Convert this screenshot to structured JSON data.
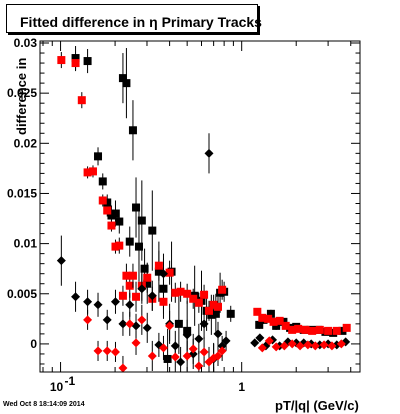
{
  "title": "Fitted difference in η  Primary Tracks",
  "timestamp": "Wed Oct  8 18:14:09 2014",
  "chart_data": {
    "type": "scatter",
    "title": "Fitted difference in η  Primary Tracks",
    "xlabel": "pT/|q| (GeV/c)",
    "ylabel": "difference in",
    "x_scale": "log",
    "xlim": [
      0.077,
      4.5
    ],
    "ylim": [
      -0.0028,
      0.0302
    ],
    "x_ticks": [
      {
        "value": 0.1,
        "label": "10",
        "exp": "-1"
      },
      {
        "value": 1,
        "label": "1",
        "exp": ""
      }
    ],
    "y_ticks": [
      {
        "value": 0,
        "label": "0"
      },
      {
        "value": 0.005,
        "label": "0.005"
      },
      {
        "value": 0.01,
        "label": "0.01"
      },
      {
        "value": 0.015,
        "label": "0.015"
      },
      {
        "value": 0.02,
        "label": "0.02"
      },
      {
        "value": 0.025,
        "label": "0.025"
      },
      {
        "value": 0.03,
        "label": "0.03"
      }
    ],
    "grid": false,
    "series": [
      {
        "color": "#000000",
        "marker": "square",
        "points": [
          [
            0.121,
            0.0285,
            0.0012
          ],
          [
            0.141,
            0.0282,
            0.0012
          ],
          [
            0.161,
            0.0187,
            0.0009
          ],
          [
            0.171,
            0.0162,
            0.0008
          ],
          [
            0.181,
            0.0141,
            0.0008
          ],
          [
            0.191,
            0.0128,
            0.001
          ],
          [
            0.201,
            0.013,
            0.0013
          ],
          [
            0.211,
            0.0122,
            0.0012
          ],
          [
            0.221,
            0.0265,
            0.0025
          ],
          [
            0.231,
            0.026,
            0.0035
          ],
          [
            0.241,
            0.0102,
            0.0015
          ],
          [
            0.251,
            0.0213,
            0.003
          ],
          [
            0.261,
            0.0136,
            0.003
          ],
          [
            0.271,
            0.0097,
            0.0035
          ],
          [
            0.281,
            0.0123,
            0.004
          ],
          [
            0.291,
            0.0075,
            0.002
          ],
          [
            0.301,
            0.006,
            0.002
          ],
          [
            0.321,
            0.0113,
            0.004
          ],
          [
            0.349,
            0.0072,
            0.003
          ],
          [
            0.37,
            0.0055,
            0.003
          ],
          [
            0.39,
            -0.0015,
            0.003
          ],
          [
            0.41,
            0.0072,
            0.003
          ],
          [
            0.45,
            0.002,
            0.003
          ],
          [
            0.5,
            0.0013,
            0.003
          ],
          [
            0.55,
            0.0048,
            0.003
          ],
          [
            0.6,
            0.0043,
            0.003
          ],
          [
            0.64,
            0.0033,
            0.002
          ],
          [
            0.68,
            0.0029,
            0.002
          ],
          [
            0.72,
            0.003,
            0.002
          ],
          [
            0.76,
            0.0051,
            0.002
          ],
          [
            0.8,
            0.0052,
            0.001
          ],
          [
            0.87,
            0.003,
            0.0008
          ],
          [
            1.25,
            0.0019,
            0.0004
          ],
          [
            1.32,
            0.0024,
            0.0004
          ],
          [
            1.45,
            0.003,
            0.0004
          ],
          [
            1.55,
            0.0018,
            0.0004
          ],
          [
            1.7,
            0.0022,
            0.0003
          ],
          [
            1.85,
            0.0016,
            0.0003
          ],
          [
            2.0,
            0.0017,
            0.0003
          ],
          [
            2.2,
            0.0014,
            0.0003
          ],
          [
            2.4,
            0.0014,
            0.0003
          ],
          [
            2.65,
            0.0014,
            0.0003
          ],
          [
            2.9,
            0.0012,
            0.0003
          ],
          [
            3.2,
            0.0011,
            0.0003
          ],
          [
            3.6,
            0.0013,
            0.0003
          ]
        ]
      },
      {
        "color": "#ff0000",
        "marker": "square",
        "points": [
          [
            0.101,
            0.0283,
            0.0008
          ],
          [
            0.121,
            0.028,
            0.0008
          ],
          [
            0.131,
            0.0243,
            0.0008
          ],
          [
            0.141,
            0.0171,
            0.0006
          ],
          [
            0.151,
            0.0172,
            0.0006
          ],
          [
            0.171,
            0.0143,
            0.0006
          ],
          [
            0.181,
            0.0133,
            0.0006
          ],
          [
            0.191,
            0.0118,
            0.0006
          ],
          [
            0.201,
            0.0097,
            0.0007
          ],
          [
            0.211,
            0.0098,
            0.0008
          ],
          [
            0.221,
            0.0048,
            0.001
          ],
          [
            0.231,
            0.0068,
            0.0012
          ],
          [
            0.241,
            0.0058,
            0.0012
          ],
          [
            0.251,
            0.0068,
            0.0012
          ],
          [
            0.261,
            0.0047,
            0.0015
          ],
          [
            0.281,
            0.0058,
            0.0015
          ],
          [
            0.301,
            0.0066,
            0.0015
          ],
          [
            0.321,
            0.0045,
            0.0012
          ],
          [
            0.349,
            0.0078,
            0.0015
          ],
          [
            0.37,
            0.0042,
            0.0012
          ],
          [
            0.4,
            0.0071,
            0.0012
          ],
          [
            0.43,
            0.0051,
            0.001
          ],
          [
            0.46,
            0.0052,
            0.001
          ],
          [
            0.5,
            0.005,
            0.001
          ],
          [
            0.54,
            0.0045,
            0.001
          ],
          [
            0.58,
            0.0041,
            0.001
          ],
          [
            0.62,
            0.0049,
            0.001
          ],
          [
            0.66,
            0.0033,
            0.001
          ],
          [
            0.7,
            0.0039,
            0.001
          ],
          [
            0.74,
            0.0037,
            0.001
          ],
          [
            0.78,
            0.0054,
            0.001
          ],
          [
            1.22,
            0.0032,
            0.0003
          ],
          [
            1.3,
            0.0026,
            0.0003
          ],
          [
            1.4,
            0.0025,
            0.0003
          ],
          [
            1.5,
            0.0022,
            0.0003
          ],
          [
            1.62,
            0.0023,
            0.0003
          ],
          [
            1.75,
            0.0018,
            0.0003
          ],
          [
            1.9,
            0.0014,
            0.0003
          ],
          [
            2.05,
            0.0015,
            0.0003
          ],
          [
            2.25,
            0.0014,
            0.0003
          ],
          [
            2.45,
            0.0013,
            0.0003
          ],
          [
            2.7,
            0.0014,
            0.0003
          ],
          [
            3.0,
            0.0013,
            0.0003
          ],
          [
            3.35,
            0.0013,
            0.0003
          ],
          [
            3.8,
            0.0016,
            0.0003
          ]
        ]
      },
      {
        "color": "#000000",
        "marker": "diamond",
        "points": [
          [
            0.101,
            0.0083,
            0.0025
          ],
          [
            0.121,
            0.0047,
            0.0015
          ],
          [
            0.141,
            0.0042,
            0.0012
          ],
          [
            0.161,
            0.0039,
            0.0012
          ],
          [
            0.181,
            0.0024,
            0.001
          ],
          [
            0.201,
            0.0042,
            0.0012
          ],
          [
            0.221,
            0.002,
            0.0012
          ],
          [
            0.241,
            0.0039,
            0.0012
          ],
          [
            0.261,
            0.0018,
            0.0012
          ],
          [
            0.281,
            0.0055,
            0.0015
          ],
          [
            0.301,
            0.0016,
            0.0015
          ],
          [
            0.321,
            0.0048,
            0.0015
          ],
          [
            0.349,
            -0.0001,
            0.0012
          ],
          [
            0.37,
            0.007,
            0.002
          ],
          [
            0.4,
            0.002,
            0.002
          ],
          [
            0.43,
            -0.0002,
            0.0015
          ],
          [
            0.46,
            -0.0018,
            0.0015
          ],
          [
            0.5,
            0.0009,
            0.0015
          ],
          [
            0.54,
            -0.001,
            0.0015
          ],
          [
            0.58,
            0.0005,
            0.0015
          ],
          [
            0.62,
            0.002,
            0.0015
          ],
          [
            0.66,
            0.019,
            0.002
          ],
          [
            0.7,
            -0.0015,
            0.0015
          ],
          [
            0.74,
            0.001,
            0.0012
          ],
          [
            0.78,
            -0.0002,
            0.001
          ],
          [
            0.82,
            0.0003,
            0.001
          ],
          [
            1.18,
            0.0001,
            0.0003
          ],
          [
            1.26,
            0.0006,
            0.0003
          ],
          [
            1.36,
            -0.0002,
            0.0003
          ],
          [
            1.48,
            0.0004,
            0.0003
          ],
          [
            1.62,
            -0.0002,
            0.0003
          ],
          [
            1.8,
            0.0002,
            0.0003
          ],
          [
            2.0,
            0.0001,
            0.0003
          ],
          [
            2.2,
            0.0001,
            0.0003
          ],
          [
            2.42,
            0.0,
            0.0003
          ],
          [
            2.7,
            -0.0001,
            0.0003
          ],
          [
            3.0,
            0.0,
            0.0003
          ],
          [
            3.35,
            -0.0001,
            0.0003
          ],
          [
            3.75,
            0.0002,
            0.0003
          ]
        ]
      },
      {
        "color": "#ff0000",
        "marker": "diamond",
        "points": [
          [
            0.141,
            0.0024,
            0.001
          ],
          [
            0.161,
            -0.0007,
            0.001
          ],
          [
            0.181,
            -0.0007,
            0.001
          ],
          [
            0.201,
            -0.0008,
            0.001
          ],
          [
            0.221,
            -0.0024,
            0.0012
          ],
          [
            0.241,
            0.002,
            0.0012
          ],
          [
            0.261,
            0.0001,
            0.0012
          ],
          [
            0.281,
            0.0024,
            0.0015
          ],
          [
            0.321,
            -0.0012,
            0.0015
          ],
          [
            0.37,
            -0.0004,
            0.0012
          ],
          [
            0.4,
            0.0018,
            0.0015
          ],
          [
            0.43,
            -0.0013,
            0.0015
          ],
          [
            0.5,
            -0.0012,
            0.0015
          ],
          [
            0.54,
            -0.0005,
            0.0015
          ],
          [
            0.58,
            -0.0022,
            0.0015
          ],
          [
            0.62,
            -0.0008,
            0.0015
          ],
          [
            0.66,
            -0.0018,
            0.0015
          ],
          [
            0.7,
            -0.0014,
            0.0015
          ],
          [
            0.74,
            -0.0012,
            0.001
          ],
          [
            0.78,
            -0.0007,
            0.001
          ],
          [
            1.3,
            -0.0004,
            0.0003
          ],
          [
            1.42,
            0.0003,
            0.0003
          ],
          [
            1.55,
            -0.0003,
            0.0003
          ],
          [
            1.72,
            -0.0002,
            0.0003
          ],
          [
            1.9,
            0.0,
            0.0003
          ],
          [
            2.1,
            -0.0002,
            0.0003
          ],
          [
            2.32,
            -0.0001,
            0.0003
          ],
          [
            2.55,
            -0.0002,
            0.0003
          ],
          [
            2.85,
            -0.0001,
            0.0003
          ],
          [
            3.15,
            -0.0002,
            0.0003
          ],
          [
            3.55,
            0.0,
            0.0003
          ]
        ]
      }
    ]
  }
}
